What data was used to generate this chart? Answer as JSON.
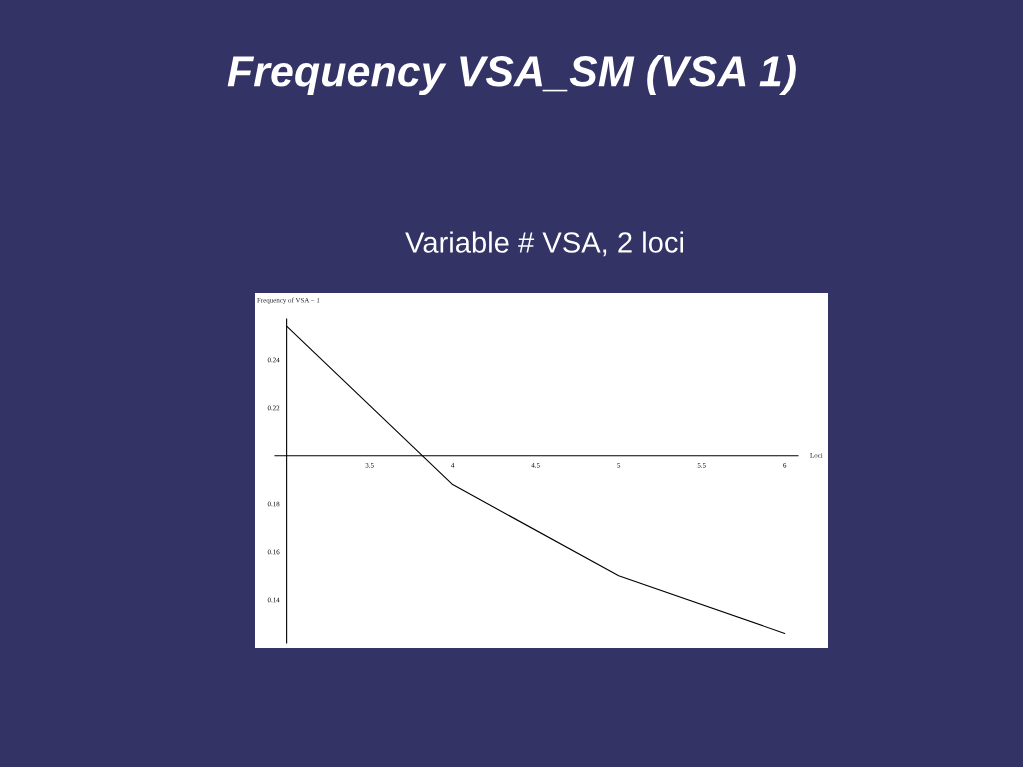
{
  "chart_data": {
    "type": "line",
    "title": "Frequency VSA_SM (VSA 1)",
    "subtitle": "Variable # VSA, 2 loci",
    "xlabel": "Loci",
    "ylabel": "Frequency of VSA − 1",
    "x": [
      3,
      4,
      5,
      6
    ],
    "series": [
      {
        "color": "#000000",
        "values": [
          0.254,
          0.188,
          0.15,
          0.126
        ]
      }
    ],
    "xlim": [
      2.93,
      6.08
    ],
    "ylim": [
      0.122,
      0.257
    ],
    "xticks": [
      {
        "value": 3,
        "label": null
      },
      3.5,
      4,
      4.5,
      5,
      5.5,
      6
    ],
    "yticks": [
      0.14,
      0.16,
      0.18,
      {
        "value": 0.2,
        "label": null
      },
      0.22,
      0.24
    ],
    "line_style": "solid"
  }
}
